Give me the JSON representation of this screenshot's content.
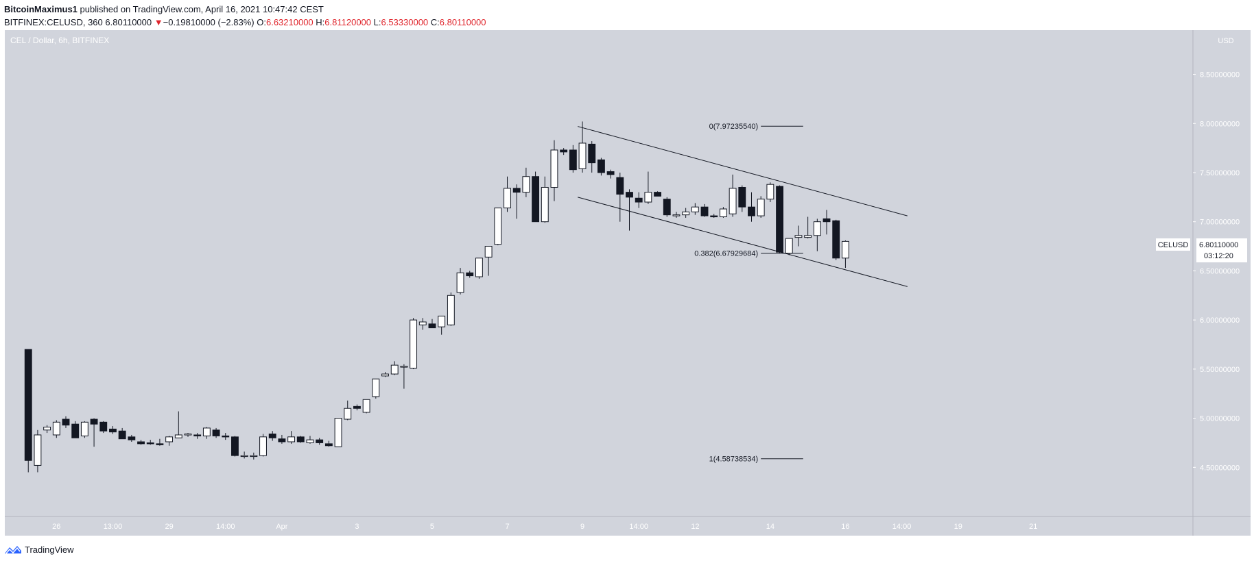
{
  "header": {
    "publisher": "BitcoinMaximus1",
    "published_text": "published on TradingView.com, April 16, 2021 10:47:42 CEST",
    "symbol": "BITFINEX:CELUSD, 360",
    "last": "6.80110000",
    "change_arrow": "▼",
    "change": "−0.19810000 (−2.83%)",
    "o_label": "O:",
    "o_value": "6.63210000",
    "h_label": "H:",
    "h_value": "6.81120000",
    "l_label": "L:",
    "l_value": "6.53330000",
    "c_label": "C:",
    "c_value": "6.80110000"
  },
  "footer": {
    "brand": "TradingView"
  },
  "colors": {
    "background": "#d1d4dc",
    "axis_background": "#d1d4dc",
    "up_candle": "#ffffff",
    "down_candle": "#131722",
    "wick": "#131722",
    "change_red": "#e0262d"
  },
  "chart_data": {
    "type": "candlestick",
    "title": "CEL / Dollar, 6h, BITFINEX",
    "currency": "USD",
    "price_label": {
      "symbol": "CELUSD",
      "value": "6.80110000",
      "countdown": "03:12:20"
    },
    "y_ticks": [
      "8.50000000",
      "8.00000000",
      "7.50000000",
      "7.00000000",
      "6.50000000",
      "6.00000000",
      "5.50000000",
      "5.00000000",
      "4.50000000"
    ],
    "y_tick_values": [
      8.5,
      8.0,
      7.5,
      7.0,
      6.5,
      6.0,
      5.5,
      5.0,
      4.5
    ],
    "ylim": [
      4.0,
      8.95
    ],
    "x_ticks": [
      {
        "label": "26",
        "i": 3
      },
      {
        "label": "13:00",
        "i": 9
      },
      {
        "label": "29",
        "i": 15
      },
      {
        "label": "14:00",
        "i": 21
      },
      {
        "label": "Apr",
        "i": 27
      },
      {
        "label": "3",
        "i": 35
      },
      {
        "label": "5",
        "i": 43
      },
      {
        "label": "7",
        "i": 51
      },
      {
        "label": "9",
        "i": 59
      },
      {
        "label": "14:00",
        "i": 65
      },
      {
        "label": "12",
        "i": 71
      },
      {
        "label": "14",
        "i": 79
      },
      {
        "label": "16",
        "i": 87
      },
      {
        "label": "14:00",
        "i": 93
      },
      {
        "label": "19",
        "i": 99
      },
      {
        "label": "21",
        "i": 107
      }
    ],
    "x_range": [
      -2.5,
      124
    ],
    "candles": [
      [
        5.7,
        5.7,
        4.45,
        4.57
      ],
      [
        4.52,
        4.88,
        4.45,
        4.83
      ],
      [
        4.88,
        4.93,
        4.85,
        4.91
      ],
      [
        4.83,
        4.98,
        4.8,
        4.96
      ],
      [
        4.99,
        5.02,
        4.9,
        4.93
      ],
      [
        4.94,
        4.97,
        4.8,
        4.8
      ],
      [
        4.82,
        4.97,
        4.8,
        4.96
      ],
      [
        4.99,
        5.0,
        4.71,
        4.94
      ],
      [
        4.96,
        4.97,
        4.85,
        4.87
      ],
      [
        4.89,
        4.92,
        4.84,
        4.86
      ],
      [
        4.87,
        4.9,
        4.79,
        4.79
      ],
      [
        4.81,
        4.83,
        4.76,
        4.78
      ],
      [
        4.76,
        4.78,
        4.73,
        4.74
      ],
      [
        4.75,
        4.78,
        4.73,
        4.74
      ],
      [
        4.74,
        4.79,
        4.72,
        4.73
      ],
      [
        4.76,
        4.82,
        4.72,
        4.81
      ],
      [
        4.8,
        5.07,
        4.8,
        4.83
      ],
      [
        4.83,
        4.85,
        4.81,
        4.84
      ],
      [
        4.83,
        4.85,
        4.79,
        4.82
      ],
      [
        4.82,
        4.91,
        4.79,
        4.9
      ],
      [
        4.88,
        4.9,
        4.8,
        4.82
      ],
      [
        4.82,
        4.85,
        4.78,
        4.81
      ],
      [
        4.81,
        4.82,
        4.61,
        4.62
      ],
      [
        4.62,
        4.66,
        4.59,
        4.62
      ],
      [
        4.62,
        4.65,
        4.58,
        4.62
      ],
      [
        4.62,
        4.84,
        4.61,
        4.81
      ],
      [
        4.84,
        4.87,
        4.77,
        4.8
      ],
      [
        4.79,
        4.83,
        4.74,
        4.76
      ],
      [
        4.76,
        4.87,
        4.74,
        4.81
      ],
      [
        4.81,
        4.82,
        4.75,
        4.76
      ],
      [
        4.75,
        4.82,
        4.74,
        4.78
      ],
      [
        4.78,
        4.8,
        4.73,
        4.75
      ],
      [
        4.74,
        4.77,
        4.71,
        4.72
      ],
      [
        4.71,
        5.0,
        4.71,
        5.0
      ],
      [
        4.99,
        5.18,
        4.98,
        5.1
      ],
      [
        5.12,
        5.14,
        5.08,
        5.1
      ],
      [
        5.06,
        5.18,
        5.05,
        5.19
      ],
      [
        5.22,
        5.4,
        5.2,
        5.4
      ],
      [
        5.43,
        5.47,
        5.42,
        5.45
      ],
      [
        5.45,
        5.58,
        5.44,
        5.54
      ],
      [
        5.52,
        5.55,
        5.3,
        5.53
      ],
      [
        5.51,
        6.02,
        5.5,
        6.0
      ],
      [
        5.95,
        6.02,
        5.9,
        5.98
      ],
      [
        5.96,
        6.01,
        5.92,
        5.92
      ],
      [
        5.93,
        6.04,
        5.85,
        6.04
      ],
      [
        5.95,
        6.28,
        5.94,
        6.25
      ],
      [
        6.28,
        6.53,
        6.26,
        6.48
      ],
      [
        6.48,
        6.5,
        6.43,
        6.45
      ],
      [
        6.44,
        6.62,
        6.42,
        6.63
      ],
      [
        6.64,
        6.73,
        6.45,
        6.75
      ],
      [
        6.77,
        7.14,
        6.76,
        7.14
      ],
      [
        7.14,
        7.46,
        7.1,
        7.34
      ],
      [
        7.34,
        7.38,
        7.03,
        7.3
      ],
      [
        7.3,
        7.55,
        7.25,
        7.46
      ],
      [
        7.46,
        7.51,
        7.0,
        7.0
      ],
      [
        7.0,
        7.46,
        6.99,
        7.35
      ],
      [
        7.35,
        7.83,
        7.21,
        7.73
      ],
      [
        7.73,
        7.75,
        7.68,
        7.71
      ],
      [
        7.73,
        7.78,
        7.5,
        7.53
      ],
      [
        7.54,
        8.02,
        7.5,
        7.8
      ],
      [
        7.79,
        7.82,
        7.5,
        7.6
      ],
      [
        7.63,
        7.65,
        7.47,
        7.5
      ],
      [
        7.51,
        7.53,
        7.44,
        7.48
      ],
      [
        7.45,
        7.5,
        7.0,
        7.28
      ],
      [
        7.3,
        7.33,
        6.91,
        7.25
      ],
      [
        7.24,
        7.3,
        7.14,
        7.2
      ],
      [
        7.2,
        7.51,
        7.18,
        7.3
      ],
      [
        7.3,
        7.31,
        7.26,
        7.26
      ],
      [
        7.23,
        7.25,
        7.05,
        7.07
      ],
      [
        7.07,
        7.1,
        7.04,
        7.07
      ],
      [
        7.07,
        7.14,
        7.04,
        7.1
      ],
      [
        7.1,
        7.19,
        7.07,
        7.15
      ],
      [
        7.15,
        7.18,
        7.05,
        7.06
      ],
      [
        7.06,
        7.08,
        7.04,
        7.05
      ],
      [
        7.05,
        7.15,
        7.04,
        7.13
      ],
      [
        7.08,
        7.48,
        7.05,
        7.34
      ],
      [
        7.35,
        7.37,
        7.1,
        7.15
      ],
      [
        7.15,
        7.3,
        7.0,
        7.06
      ],
      [
        7.06,
        7.26,
        7.04,
        7.23
      ],
      [
        7.23,
        7.4,
        7.2,
        7.38
      ],
      [
        7.36,
        7.37,
        6.68,
        6.69
      ],
      [
        6.68,
        6.83,
        6.66,
        6.83
      ],
      [
        6.84,
        6.96,
        6.75,
        6.86
      ],
      [
        6.84,
        7.05,
        6.83,
        6.86
      ],
      [
        6.86,
        7.03,
        6.7,
        7.0
      ],
      [
        7.03,
        7.12,
        6.87,
        7.0
      ],
      [
        7.01,
        7.02,
        6.61,
        6.63
      ],
      [
        6.63,
        6.81,
        6.53,
        6.8
      ]
    ],
    "channel": {
      "upper": [
        {
          "i": 58.5,
          "p": 7.97
        },
        {
          "i": 93.6,
          "p": 7.06
        }
      ],
      "lower": [
        {
          "i": 58.5,
          "p": 7.25
        },
        {
          "i": 93.6,
          "p": 6.34
        }
      ]
    },
    "fib_levels": [
      {
        "label": "0(7.97235540)",
        "price": 7.9723554
      },
      {
        "label": "0.382(6.67929684)",
        "price": 6.67929684
      },
      {
        "label": "1(4.58738534)",
        "price": 4.58738534
      }
    ],
    "fib_x_range": [
      78.0,
      82.5
    ]
  }
}
